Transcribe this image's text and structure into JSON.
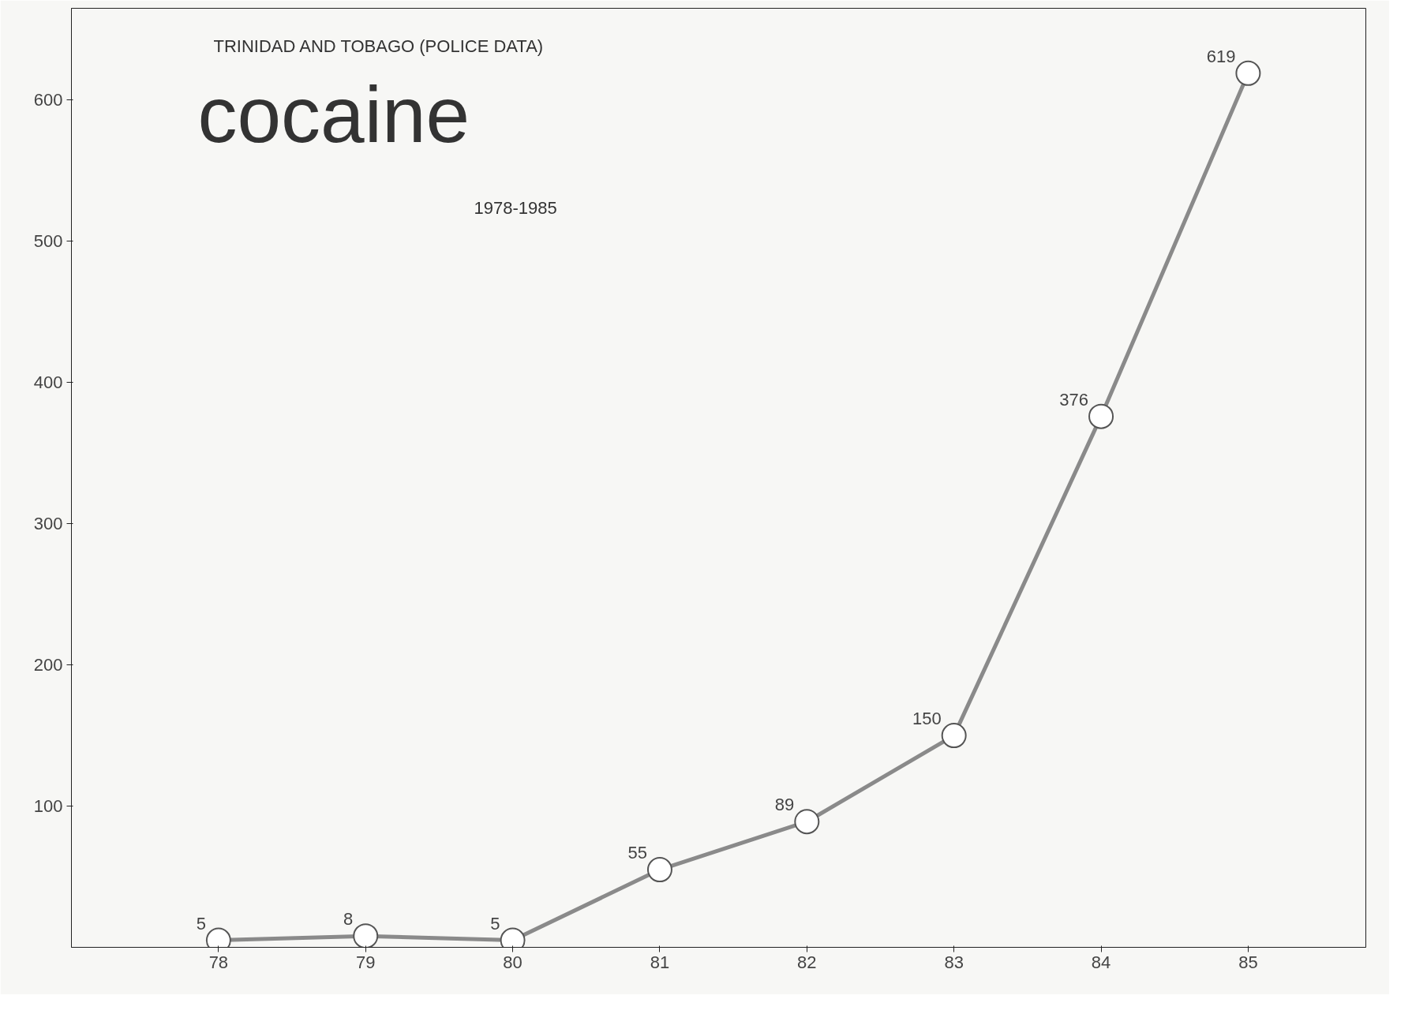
{
  "chart_data": {
    "type": "line",
    "title": "cocaine",
    "subtitle": "TRINIDAD AND TOBAGO (POLICE DATA)",
    "annotations": [
      "1978-1985"
    ],
    "x": [
      78,
      79,
      80,
      81,
      82,
      83,
      84,
      85
    ],
    "series": [
      {
        "color": "#8a8a8a",
        "values": [
          5,
          8,
          5,
          55,
          89,
          150,
          376,
          619
        ]
      }
    ],
    "xlim": [
      77,
      85.8
    ],
    "xticks": [
      78,
      79,
      80,
      81,
      82,
      83,
      84,
      85
    ],
    "ylim": [
      0,
      665
    ],
    "yticks": [
      100,
      200,
      300,
      400,
      500,
      600
    ],
    "marker": "circle",
    "line_style": "solid",
    "data_labels": true
  }
}
